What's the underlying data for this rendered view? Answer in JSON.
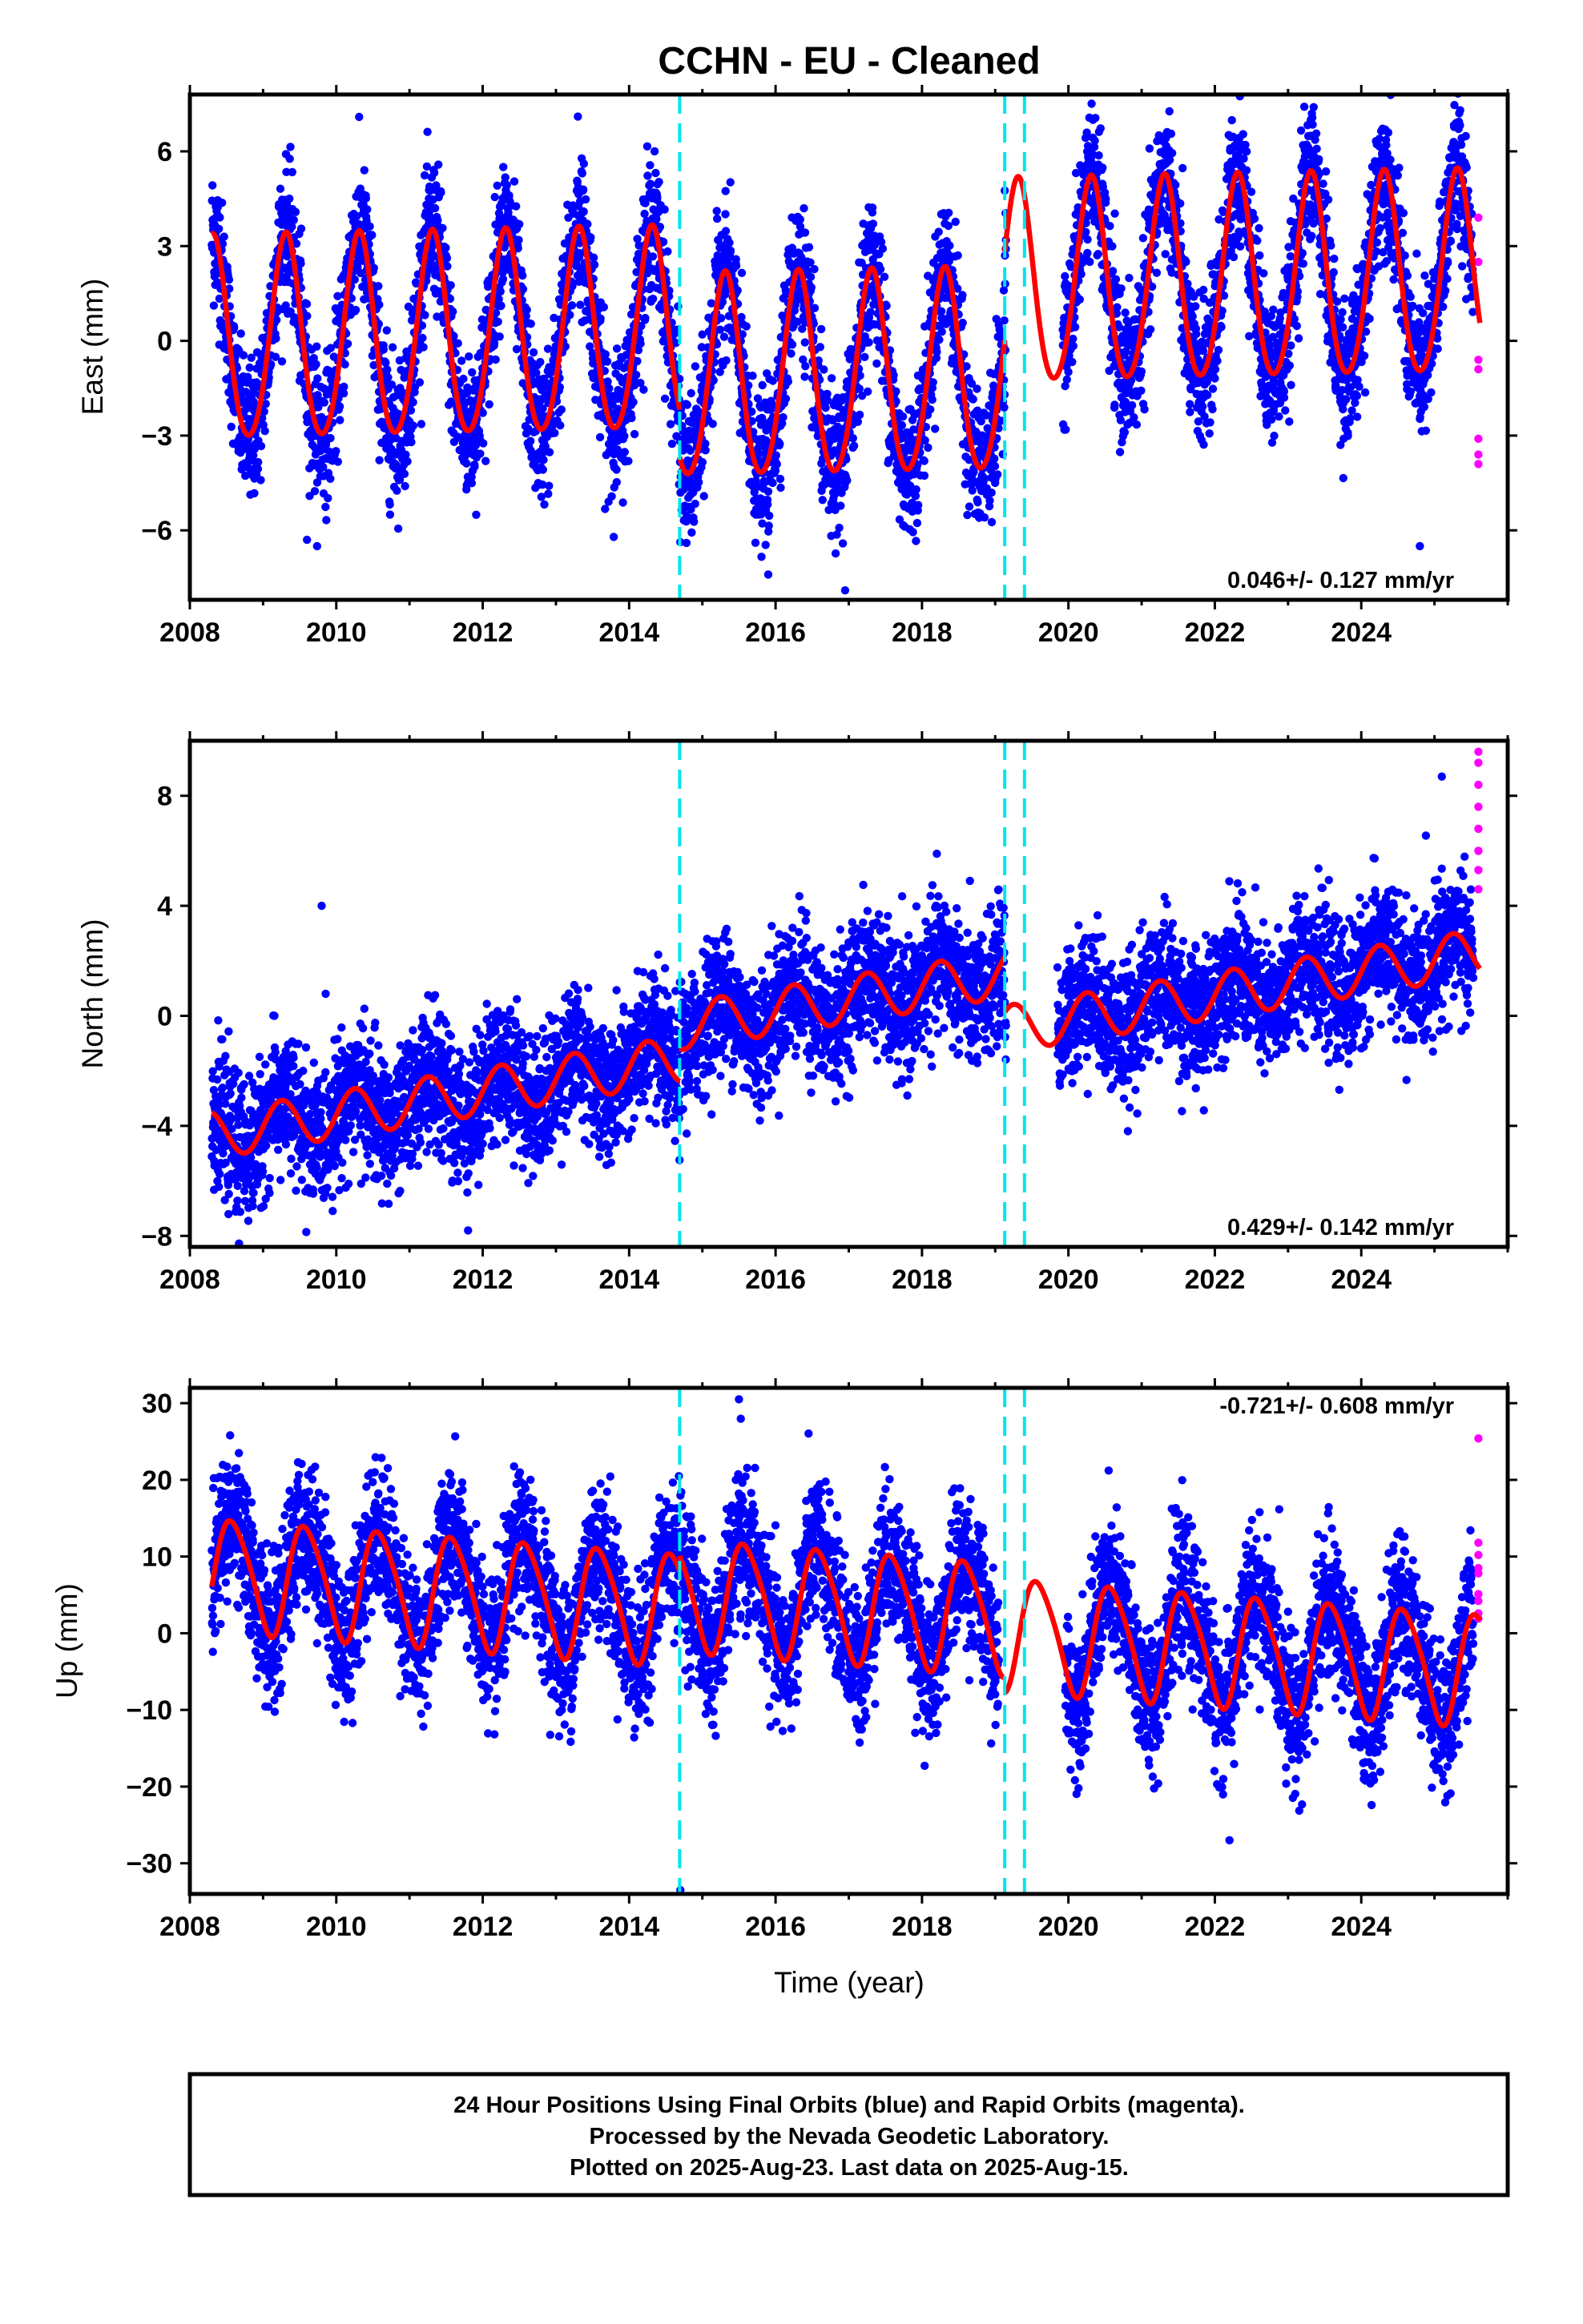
{
  "title": "CCHN  - EU - Cleaned",
  "colors": {
    "final_orbits": "#0000ff",
    "rapid_orbits": "#ff00ff",
    "model": "#ff0000",
    "breaks": "#00e5ee",
    "frame": "#000000"
  },
  "footer": {
    "lines": [
      "24 Hour Positions Using Final Orbits (blue) and Rapid Orbits (magenta).",
      "Processed by the Nevada Geodetic Laboratory.",
      "Plotted on 2025-Aug-23. Last data on 2025-Aug-15."
    ]
  },
  "chart_data": [
    {
      "type": "scatter",
      "ylabel": "East (mm)",
      "xlabel": "",
      "xlim": [
        2008,
        2026
      ],
      "ylim": [
        -8.2,
        7.8
      ],
      "xticks": [
        2008,
        2010,
        2012,
        2014,
        2016,
        2018,
        2020,
        2022,
        2024
      ],
      "xtick_labels": [
        "2008",
        "2010",
        "2012",
        "2014",
        "2016",
        "2018",
        "2020",
        "2022",
        "2024"
      ],
      "yticks": [
        -6,
        -3,
        0,
        3,
        6
      ],
      "ytick_labels": [
        "−6",
        "−3",
        "0",
        "3",
        "6"
      ],
      "rate_label": "0.046+/- 0.127 mm/yr",
      "rate_position": "bottom-right",
      "breaks": [
        2014.69,
        2019.13,
        2019.4
      ],
      "data_range": [
        2008.3,
        2025.53
      ],
      "gaps": [
        [
          2019.15,
          2019.92
        ]
      ],
      "model": {
        "offset": 0.3,
        "trend": 0.046,
        "ref": 2017,
        "segments": [
          [
            2008.3,
            2014.69,
            0
          ],
          [
            2014.69,
            2019.13,
            -1.5
          ],
          [
            2019.13,
            2025.62,
            1.3
          ]
        ],
        "annual": [
          3.2,
          2008.06
        ],
        "semiannual": [
          0.3,
          2008.2
        ]
      },
      "noise": 1.1,
      "outliers": [
        [
          2013.3,
          7.1
        ],
        [
          2023.35,
          7.4
        ],
        [
          2016.95,
          -7.9
        ],
        [
          2015.9,
          -7.4
        ],
        [
          2009.6,
          -6.3
        ],
        [
          2024.8,
          -6.5
        ]
      ],
      "rapid": {
        "x": 2025.6,
        "y": [
          3.9,
          2.5,
          -0.6,
          -0.9,
          -3.1,
          -3.6,
          -3.9
        ]
      }
    },
    {
      "type": "scatter",
      "ylabel": "North (mm)",
      "xlabel": "",
      "xlim": [
        2008,
        2026
      ],
      "ylim": [
        -8.4,
        10
      ],
      "xticks": [
        2008,
        2010,
        2012,
        2014,
        2016,
        2018,
        2020,
        2022,
        2024
      ],
      "xtick_labels": [
        "2008",
        "2010",
        "2012",
        "2014",
        "2016",
        "2018",
        "2020",
        "2022",
        "2024"
      ],
      "yticks": [
        -8,
        -4,
        0,
        4,
        8
      ],
      "ytick_labels": [
        "−8",
        "−4",
        "0",
        "4",
        "8"
      ],
      "rate_label": "0.429+/- 0.142 mm/yr",
      "rate_position": "bottom-right",
      "breaks": [
        2014.69,
        2019.13,
        2019.4
      ],
      "data_range": [
        2008.3,
        2025.53
      ],
      "gaps": [
        [
          2019.15,
          2019.85
        ]
      ],
      "model": {
        "offset": -0.6,
        "trend": 0.429,
        "ref": 2017,
        "segments": [
          [
            2008.3,
            2014.69,
            0
          ],
          [
            2014.69,
            2019.13,
            1.2
          ],
          [
            2019.13,
            2025.62,
            -0.8
          ]
        ],
        "annual": [
          0.85,
          2008.0
        ],
        "semiannual": [
          0.0,
          2008.0
        ]
      },
      "noise": 1.2,
      "outliers": [
        [
          2009.8,
          4.0
        ],
        [
          2011.8,
          -7.8
        ],
        [
          2025.1,
          8.7
        ]
      ],
      "rapid": {
        "x": 2025.6,
        "y": [
          9.6,
          9.2,
          8.4,
          7.6,
          6.8,
          6.0,
          5.3,
          4.6
        ]
      }
    },
    {
      "type": "scatter",
      "ylabel": "Up (mm)",
      "xlabel": "Time (year)",
      "xlim": [
        2008,
        2026
      ],
      "ylim": [
        -34,
        32
      ],
      "xticks": [
        2008,
        2010,
        2012,
        2014,
        2016,
        2018,
        2020,
        2022,
        2024
      ],
      "xtick_labels": [
        "2008",
        "2010",
        "2012",
        "2014",
        "2016",
        "2018",
        "2020",
        "2022",
        "2024"
      ],
      "yticks": [
        -30,
        -20,
        -10,
        0,
        10,
        20,
        30
      ],
      "ytick_labels": [
        "−30",
        "−20",
        "−10",
        "0",
        "10",
        "20",
        "30"
      ],
      "rate_label": "-0.721+/- 0.608 mm/yr",
      "rate_position": "top-right",
      "breaks": [
        2014.69,
        2019.13,
        2019.4
      ],
      "data_range": [
        2008.3,
        2025.53
      ],
      "gaps": [
        [
          2019.05,
          2019.95
        ]
      ],
      "model": {
        "offset": 1.6,
        "trend": -0.721,
        "ref": 2017,
        "segments": [
          [
            2008.3,
            2014.69,
            0
          ],
          [
            2014.69,
            2019.13,
            2.0
          ],
          [
            2019.13,
            2025.62,
            0
          ]
        ],
        "annual": [
          7.2,
          2008.34
        ],
        "semiannual": [
          1.0,
          2008.3
        ]
      },
      "noise": 4.6,
      "outliers": [
        [
          2008.55,
          25.8
        ],
        [
          2015.5,
          30.5
        ],
        [
          2014.7,
          -33.5
        ],
        [
          2022.2,
          -27.0
        ]
      ],
      "rapid": {
        "x": 2025.6,
        "y": [
          25.4,
          11.8,
          10.2,
          8.5,
          7.8,
          5.1,
          4.2,
          2.6,
          1.9
        ]
      }
    }
  ]
}
